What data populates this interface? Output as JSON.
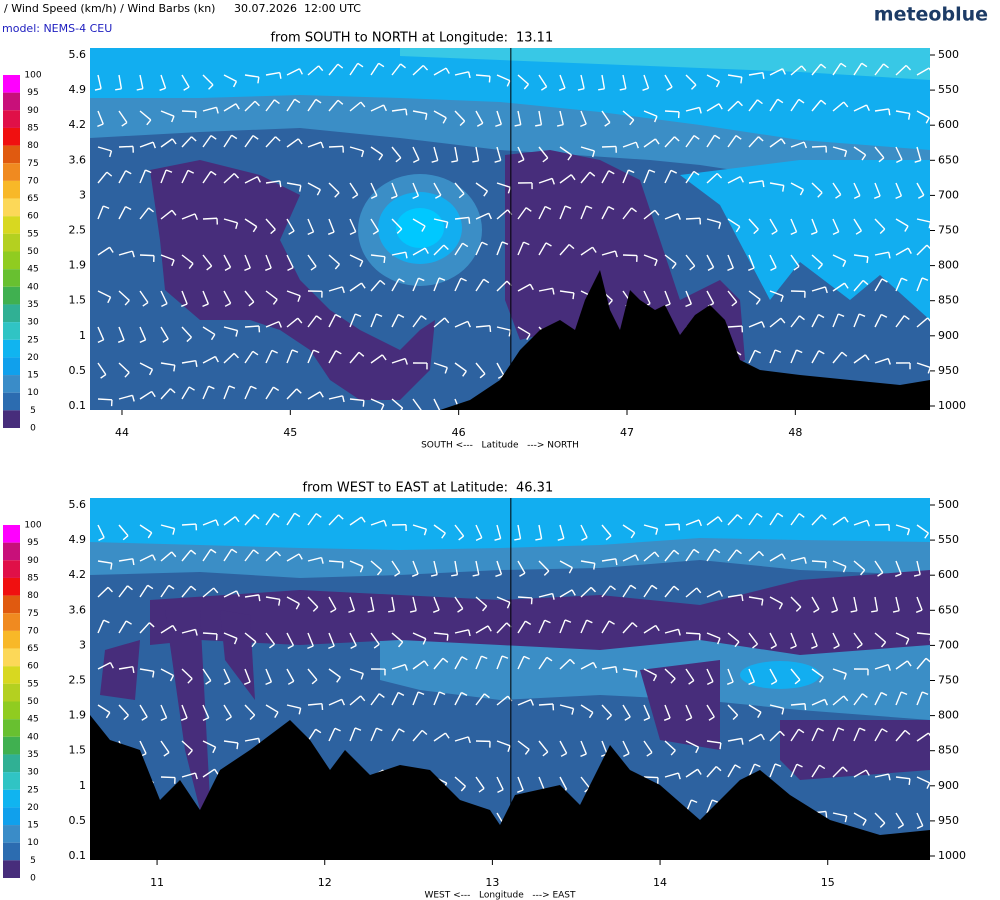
{
  "header": {
    "title": "/ Wind Speed (km/h) / Wind Barbs (kn)",
    "datetime": "30.07.2026  12:00 UTC",
    "model": "model: NEMS-4 CEU",
    "brand": "meteoblue"
  },
  "legend": {
    "levels": [
      100,
      95,
      90,
      85,
      80,
      75,
      70,
      65,
      60,
      55,
      50,
      45,
      40,
      35,
      30,
      25,
      20,
      15,
      10,
      5,
      0
    ],
    "colors": [
      "#ff00ff",
      "#c8107a",
      "#e01048",
      "#f01010",
      "#e05a10",
      "#f08a20",
      "#f8b828",
      "#fcd858",
      "#d8d820",
      "#b4d020",
      "#90cc20",
      "#68c030",
      "#40b050",
      "#30b094",
      "#30c4c4",
      "#10b4f0",
      "#10a0ec",
      "#3a8cc8",
      "#2c6cb0",
      "#472d7b"
    ]
  },
  "chart_data": [
    {
      "type": "cross-section",
      "title": "from SOUTH to NORTH at Longitude:",
      "coordinate": 13.11,
      "xlabel": "SOUTH <---   Latitude   ---> NORTH",
      "xlim": [
        43.81,
        48.8
      ],
      "xticks": [
        44,
        45,
        46,
        47,
        48
      ],
      "yticks": [
        5.6,
        4.9,
        4.2,
        3.6,
        3.0,
        2.5,
        1.9,
        1.5,
        1.0,
        0.5,
        0.1
      ],
      "y2lim": [
        500,
        1000
      ],
      "y2ticks": [
        500,
        550,
        600,
        650,
        700,
        750,
        800,
        850,
        900,
        950,
        1000
      ]
    },
    {
      "type": "cross-section",
      "title": "from WEST to EAST at Latitude:",
      "coordinate": 46.31,
      "xlabel": "WEST <---   Longitude   ---> EAST",
      "xlim": [
        10.6,
        15.61
      ],
      "xticks": [
        11,
        12,
        13,
        14,
        15
      ],
      "yticks": [
        5.6,
        4.9,
        4.2,
        3.6,
        3.0,
        2.5,
        1.9,
        1.5,
        1.0,
        0.5,
        0.1
      ],
      "y2lim": [
        500,
        1000
      ],
      "y2ticks": [
        500,
        550,
        600,
        650,
        700,
        750,
        800,
        850,
        900,
        950,
        1000
      ]
    }
  ]
}
